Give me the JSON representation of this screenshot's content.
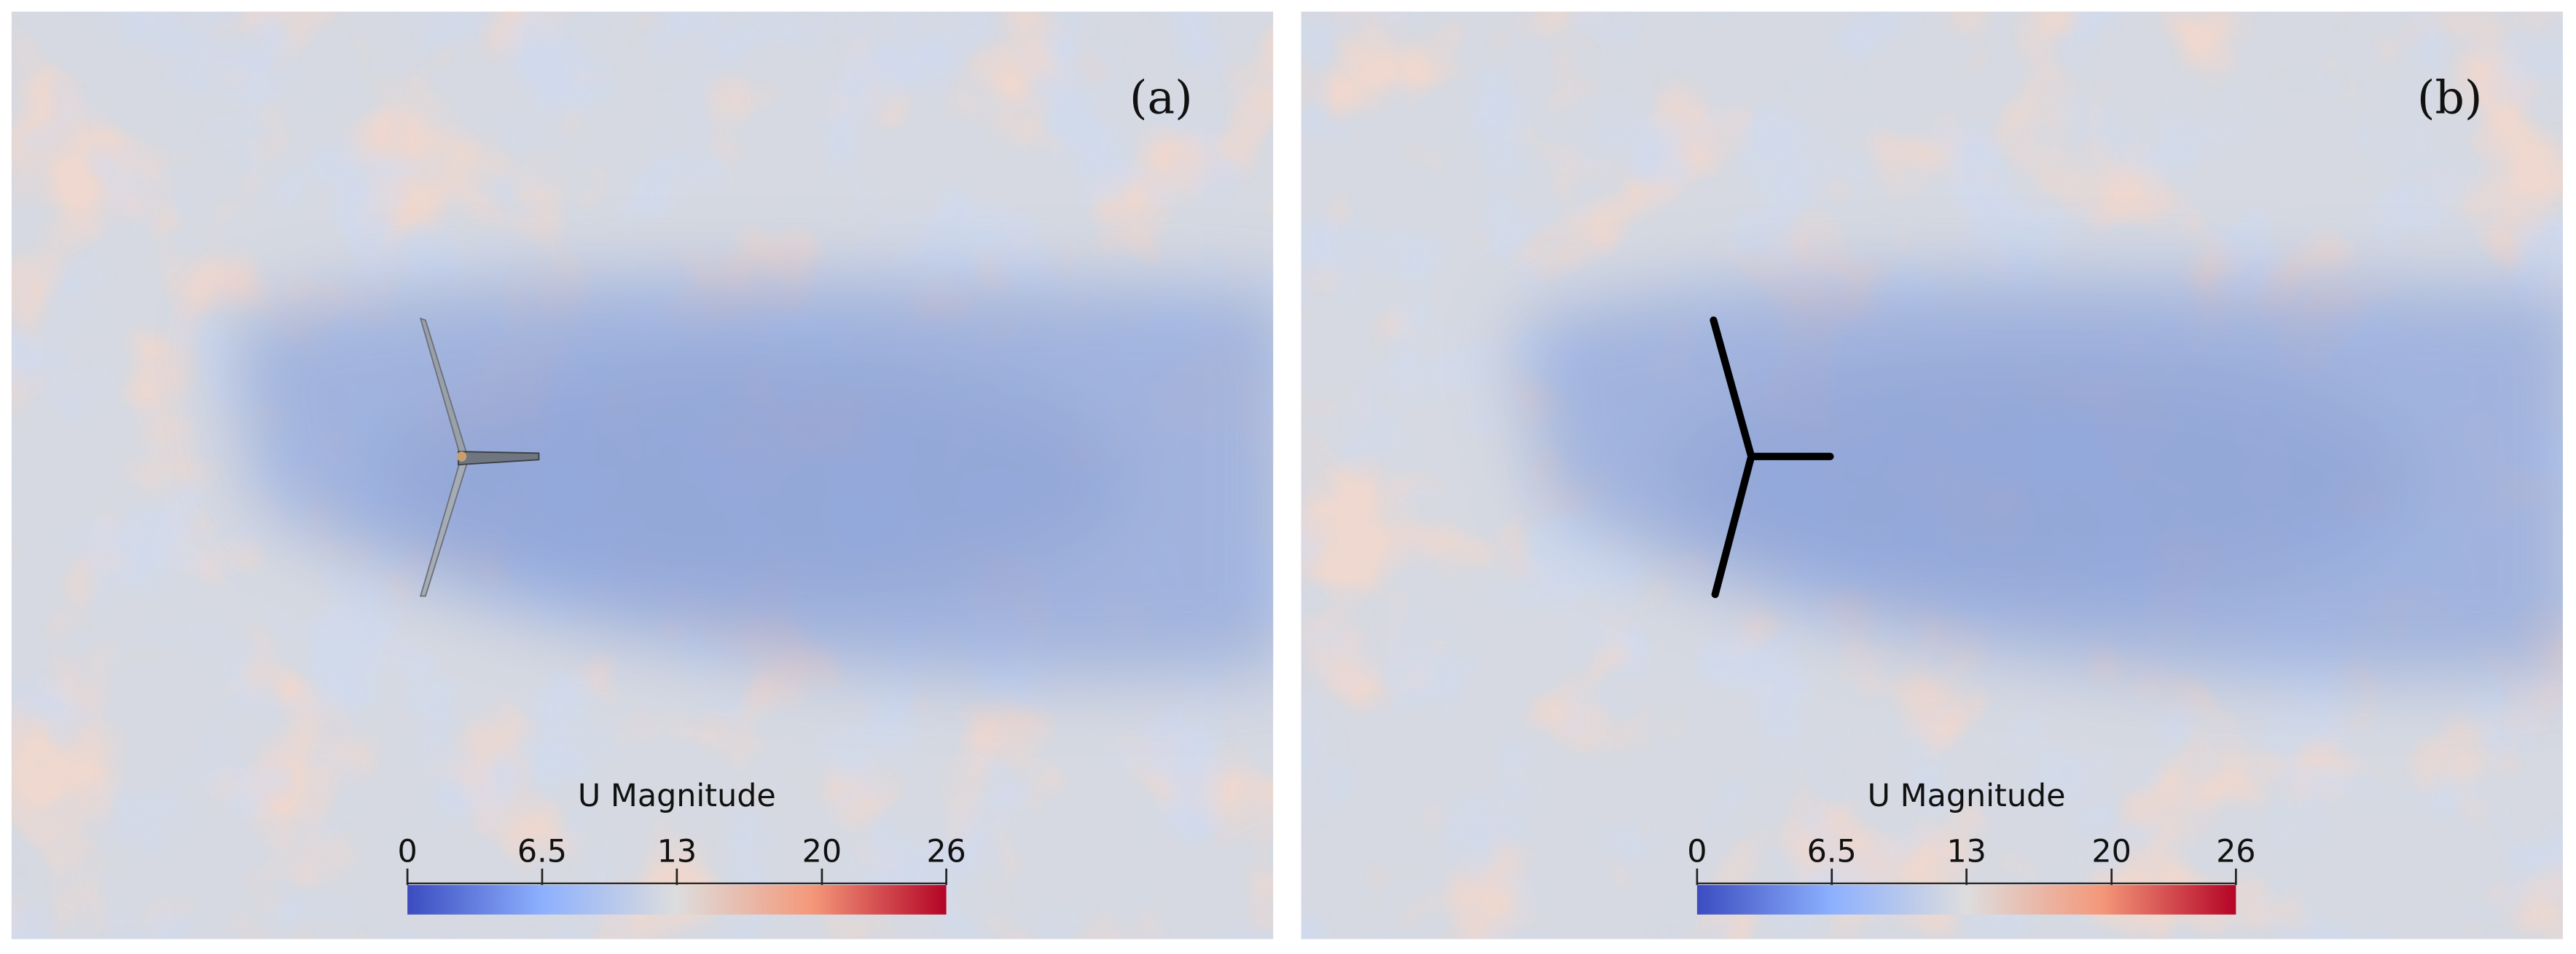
{
  "panels": [
    {
      "label": "(a)",
      "colorbar": {
        "title": "U Magnitude",
        "range": [
          0,
          26
        ],
        "ticks": [
          0,
          6.5,
          13,
          20,
          26
        ]
      }
    },
    {
      "label": "(b)",
      "colorbar": {
        "title": "U Magnitude",
        "range": [
          0,
          26
        ],
        "ticks": [
          0,
          6.5,
          13,
          20,
          26
        ]
      }
    }
  ]
}
